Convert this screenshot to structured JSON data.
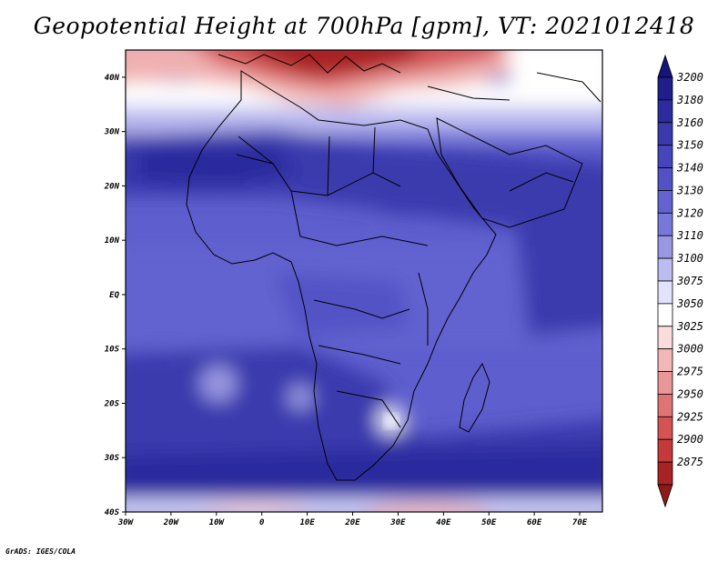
{
  "title": "Geopotential Height at 700hPa [gpm], VT: 2021012418",
  "credit": "GrADS: IGES/COLA",
  "map": {
    "lon_range": [
      -30,
      75
    ],
    "lat_range": [
      -40,
      45
    ],
    "lon_ticks": [
      {
        "lon": -30,
        "label": "30W"
      },
      {
        "lon": -20,
        "label": "20W"
      },
      {
        "lon": -10,
        "label": "10W"
      },
      {
        "lon": 0,
        "label": "0"
      },
      {
        "lon": 10,
        "label": "10E"
      },
      {
        "lon": 20,
        "label": "20E"
      },
      {
        "lon": 30,
        "label": "30E"
      },
      {
        "lon": 40,
        "label": "40E"
      },
      {
        "lon": 50,
        "label": "50E"
      },
      {
        "lon": 60,
        "label": "60E"
      },
      {
        "lon": 70,
        "label": "70E"
      }
    ],
    "lat_ticks": [
      {
        "lat": 40,
        "label": "40N"
      },
      {
        "lat": 30,
        "label": "30N"
      },
      {
        "lat": 20,
        "label": "20N"
      },
      {
        "lat": 10,
        "label": "10N"
      },
      {
        "lat": 0,
        "label": "EQ"
      },
      {
        "lat": -10,
        "label": "10S"
      },
      {
        "lat": -20,
        "label": "20S"
      },
      {
        "lat": -30,
        "label": "30S"
      },
      {
        "lat": -40,
        "label": "40S"
      }
    ]
  },
  "colorbar": {
    "levels": [
      {
        "value": "3200",
        "color": "#1e1e8c"
      },
      {
        "value": "3180",
        "color": "#2c2c9e"
      },
      {
        "value": "3160",
        "color": "#3a3aae"
      },
      {
        "value": "3150",
        "color": "#4646bc"
      },
      {
        "value": "3140",
        "color": "#5252c6"
      },
      {
        "value": "3130",
        "color": "#6262d0"
      },
      {
        "value": "3120",
        "color": "#7878da"
      },
      {
        "value": "3110",
        "color": "#9898e2"
      },
      {
        "value": "3100",
        "color": "#bcbcf0"
      },
      {
        "value": "3075",
        "color": "#e2e2fa"
      },
      {
        "value": "3050",
        "color": "#ffffff"
      },
      {
        "value": "3025",
        "color": "#fadcdc"
      },
      {
        "value": "3000",
        "color": "#f2b8b8"
      },
      {
        "value": "2975",
        "color": "#e89696"
      },
      {
        "value": "2950",
        "color": "#de7474"
      },
      {
        "value": "2925",
        "color": "#d45454"
      },
      {
        "value": "2900",
        "color": "#c43a3a"
      },
      {
        "value": "2875",
        "color": "#a82424"
      }
    ],
    "top_color": "#14147a",
    "bottom_color": "#8c1a1a"
  }
}
